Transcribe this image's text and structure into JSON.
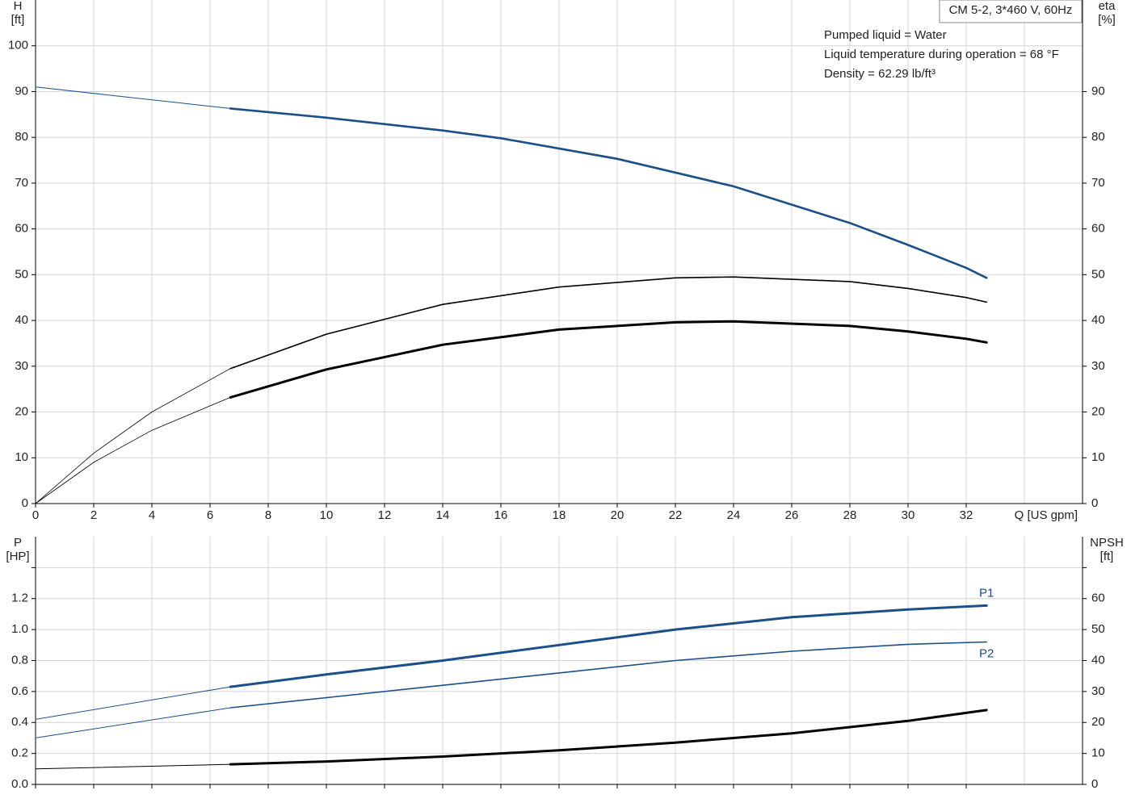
{
  "chart_data": [
    {
      "type": "line",
      "model": "CM 5-2, 3*460 V, 60Hz",
      "notes": [
        "Pumped liquid = Water",
        "Liquid temperature during operation = 68 °F",
        "Density = 62.29 lb/ft³"
      ],
      "ylabel": "H",
      "yunit": "[ft]",
      "y2label": "eta",
      "y2unit": "[%]",
      "xlabel": "Q [US gpm]",
      "xlim": [
        0,
        36
      ],
      "xticks": [
        0,
        2,
        4,
        6,
        8,
        10,
        12,
        14,
        16,
        18,
        20,
        22,
        24,
        26,
        28,
        30,
        32
      ],
      "show_xtick_labels": true,
      "ylim": [
        0,
        110
      ],
      "yticks": [
        0,
        10,
        20,
        30,
        40,
        50,
        60,
        70,
        80,
        90,
        100
      ],
      "y2lim": [
        0,
        110
      ],
      "y2ticks": [
        0,
        10,
        20,
        30,
        40,
        50,
        60,
        70,
        80,
        90
      ],
      "grid": true,
      "series": [
        {
          "color": "#1a4f8a",
          "width": 1,
          "x": [
            0,
            6.7
          ],
          "values": [
            91,
            86.3
          ]
        },
        {
          "color": "#1a4f8a",
          "width": 2.6,
          "x": [
            6.7,
            10,
            14,
            16,
            20,
            24,
            28,
            30,
            32,
            32.7
          ],
          "values": [
            86.3,
            84.3,
            81.5,
            79.8,
            75.3,
            69.3,
            61.3,
            56.5,
            51.5,
            49.3
          ]
        },
        {
          "color": "#000000",
          "width": 0.8,
          "axis": "y2",
          "x": [
            0,
            2,
            4,
            6.7
          ],
          "values": [
            0,
            11,
            20,
            29.5
          ]
        },
        {
          "color": "#000000",
          "width": 1.6,
          "axis": "y2",
          "x": [
            6.7,
            10,
            14,
            18,
            22,
            24,
            28,
            30,
            32,
            32.7
          ],
          "values": [
            29.5,
            37,
            43.5,
            47.3,
            49.3,
            49.5,
            48.5,
            47,
            45,
            44
          ]
        },
        {
          "color": "#000000",
          "width": 0.8,
          "axis": "y2",
          "x": [
            0,
            2,
            4,
            6.7
          ],
          "values": [
            0,
            9,
            16,
            23.2
          ]
        },
        {
          "color": "#000000",
          "width": 3,
          "axis": "y2",
          "x": [
            6.7,
            10,
            14,
            18,
            22,
            24,
            28,
            30,
            32,
            32.7
          ],
          "values": [
            23.2,
            29.3,
            34.7,
            38,
            39.6,
            39.8,
            38.8,
            37.6,
            36,
            35.2
          ]
        }
      ]
    },
    {
      "type": "line",
      "ylabel": "P",
      "yunit": "[HP]",
      "y2label": "NPSH",
      "y2unit": "[ft]",
      "xlim": [
        0,
        36
      ],
      "xticks": [
        0,
        2,
        4,
        6,
        8,
        10,
        12,
        14,
        16,
        18,
        20,
        22,
        24,
        26,
        28,
        30,
        32
      ],
      "show_xtick_labels": false,
      "ylim": [
        0,
        1.6
      ],
      "yticks": [
        {
          "value": 0,
          "label": "0.0"
        },
        0.2,
        0.4,
        0.6,
        0.8,
        {
          "value": 1,
          "label": "1.0"
        },
        1.2
      ],
      "y2lim": [
        0,
        80
      ],
      "y2ticks": [
        0,
        10,
        20,
        30,
        40,
        50,
        60
      ],
      "grid": true,
      "series": [
        {
          "color": "#1a4f8a",
          "width": 1,
          "x": [
            0,
            6.7
          ],
          "values": [
            0.42,
            0.63
          ]
        },
        {
          "name": "P1",
          "label_position": "above",
          "color": "#1a4f8a",
          "width": 3,
          "x": [
            6.7,
            10,
            14,
            18,
            22,
            26,
            30,
            32.7
          ],
          "values": [
            0.63,
            0.71,
            0.8,
            0.9,
            1.0,
            1.08,
            1.13,
            1.155
          ]
        },
        {
          "color": "#1a4f8a",
          "width": 1,
          "x": [
            0,
            6.7
          ],
          "values": [
            0.3,
            0.495
          ]
        },
        {
          "name": "P2",
          "label_position": "below",
          "color": "#1a4f8a",
          "width": 1.6,
          "x": [
            6.7,
            10,
            14,
            18,
            22,
            26,
            30,
            32.7
          ],
          "values": [
            0.495,
            0.56,
            0.64,
            0.72,
            0.8,
            0.86,
            0.905,
            0.92
          ]
        },
        {
          "color": "#000000",
          "width": 1,
          "axis": "y2",
          "x": [
            0,
            6.7
          ],
          "values": [
            5,
            6.5
          ]
        },
        {
          "color": "#000000",
          "width": 3,
          "axis": "y2",
          "x": [
            6.7,
            10,
            14,
            18,
            22,
            26,
            30,
            32.7
          ],
          "values": [
            6.5,
            7.4,
            9,
            11,
            13.5,
            16.5,
            20.5,
            24
          ]
        }
      ]
    }
  ]
}
